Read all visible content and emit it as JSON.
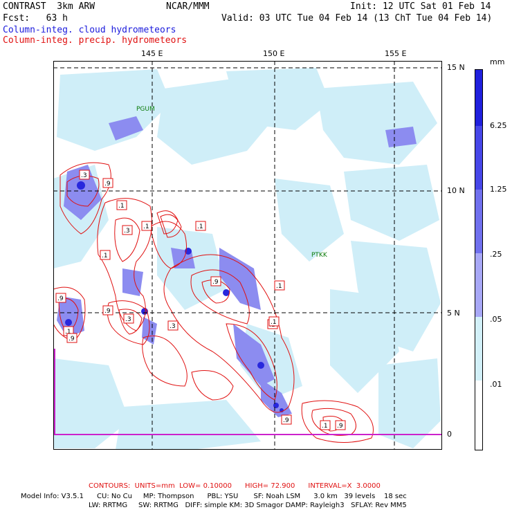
{
  "header": {
    "model": "CONTRAST  3km ARW",
    "org": "NCAR/MMM",
    "init": "Init: 12 UTC Sat 01 Feb 14",
    "fcst": "Fcst:   63 h",
    "valid": "Valid: 03 UTC Tue 04 Feb 14 (13 ChT Tue 04 Feb 14)",
    "legend_cloud": "Column-integ. cloud hydrometeors",
    "legend_precip": "Column-integ. precip. hydrometeors"
  },
  "map": {
    "lon_labels": [
      "145 E",
      "150 E",
      "155 E"
    ],
    "lat_labels": [
      "15 N",
      "10 N",
      "5 N",
      "0"
    ],
    "stations": [
      "PGUM",
      "PTKK"
    ],
    "contour_labels": [
      ".3",
      ".9",
      ".1",
      ".3",
      ".1",
      ".1",
      ".1",
      ".9",
      ".1",
      ".9",
      ".3",
      ".9",
      ".1",
      ".9",
      ".1",
      ".3",
      ".1",
      ".9",
      ".1",
      ".9"
    ]
  },
  "colorbar": {
    "unit": "mm",
    "levels": [
      "6.25",
      "1.25",
      ".25",
      ".05",
      ".01"
    ],
    "colors": [
      "#2020dd",
      "#4646e8",
      "#7070ee",
      "#a8a8f6",
      "#d2f0f8",
      "#ffffff"
    ]
  },
  "footer": {
    "contours": "CONTOURS:  UNITS=mm  LOW= 0.10000      HIGH= 72.900      INTERVAL=X  3.0000",
    "info1": "Model Info: V3.5.1      CU: No Cu     MP: Thompson      PBL: YSU       SF: Noah LSM      3.0 km   39 levels    18 sec",
    "info2": "LW: RRTMG     SW: RRTMG   DIFF: simple KM: 3D Smagor DAMP: Rayleigh3   SFLAY: Rev MM5"
  }
}
